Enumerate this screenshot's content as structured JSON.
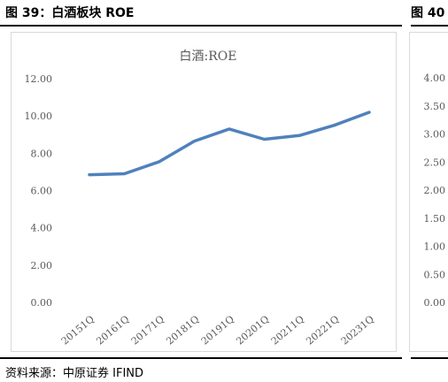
{
  "header": {
    "title": "图 39：白酒板块 ROE",
    "next_title": "图 40"
  },
  "source": "资料来源：中原证券  IFIND",
  "chart_data": {
    "type": "line",
    "title": "白酒:ROE",
    "categories": [
      "20151Q",
      "20161Q",
      "20171Q",
      "20181Q",
      "20191Q",
      "20201Q",
      "20211Q",
      "20221Q",
      "20231Q"
    ],
    "series": [
      {
        "values": [
          6.85,
          6.9,
          7.55,
          8.65,
          9.3,
          8.75,
          8.95,
          9.5,
          10.2
        ]
      }
    ],
    "y_ticks": [
      "0.00",
      "2.00",
      "4.00",
      "6.00",
      "8.00",
      "10.00",
      "12.00"
    ],
    "ylim": [
      0,
      12
    ],
    "grid": false,
    "line_color": "#4f81bd"
  },
  "partial_chart": {
    "y_ticks": [
      "0.00",
      "0.50",
      "1.00",
      "1.50",
      "2.00",
      "2.50",
      "3.00",
      "3.50",
      "4.00"
    ]
  }
}
